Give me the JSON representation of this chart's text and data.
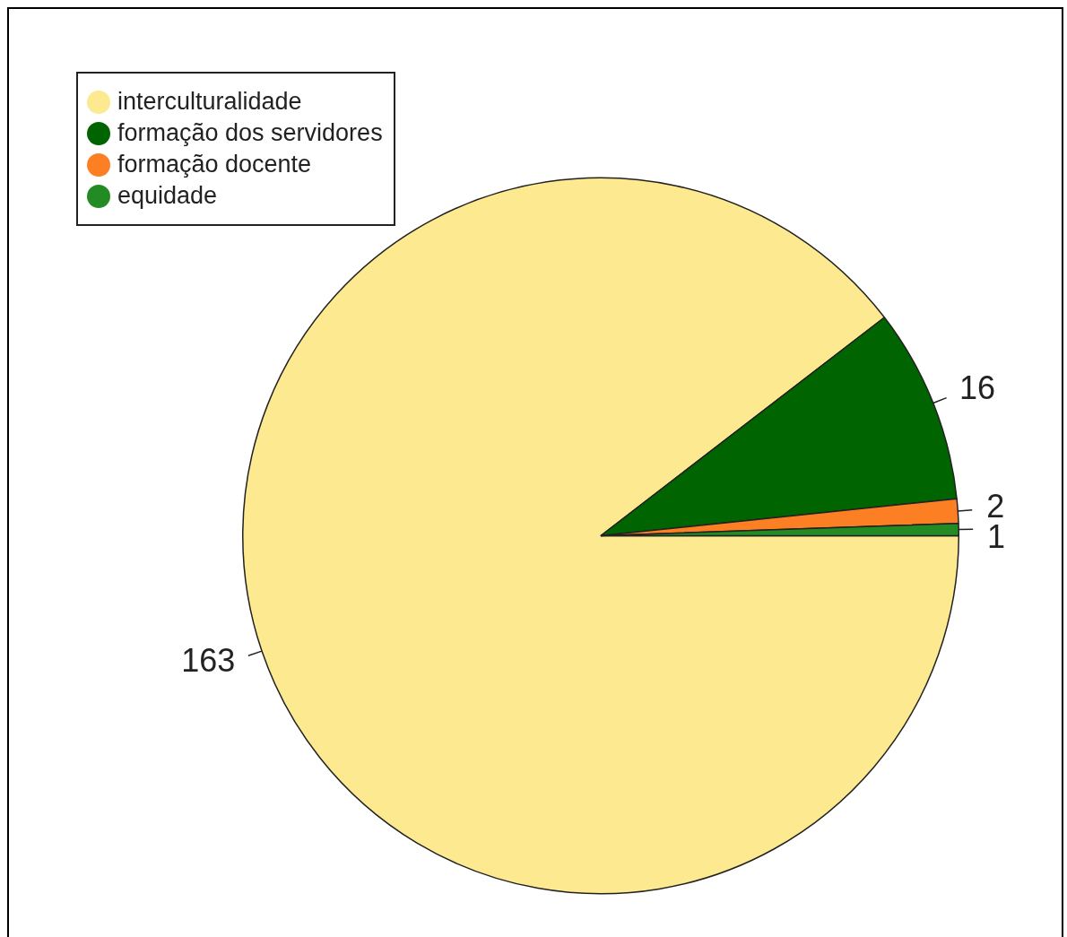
{
  "chart_data": {
    "type": "pie",
    "categories": [
      "interculturalidade",
      "formação dos servidores",
      "formação docente",
      "equidade"
    ],
    "values": [
      163,
      16,
      2,
      1
    ],
    "colors": [
      "#fde98f",
      "#006400",
      "#fd7f23",
      "#238b23"
    ],
    "data_labels": true,
    "legend": "top left"
  }
}
